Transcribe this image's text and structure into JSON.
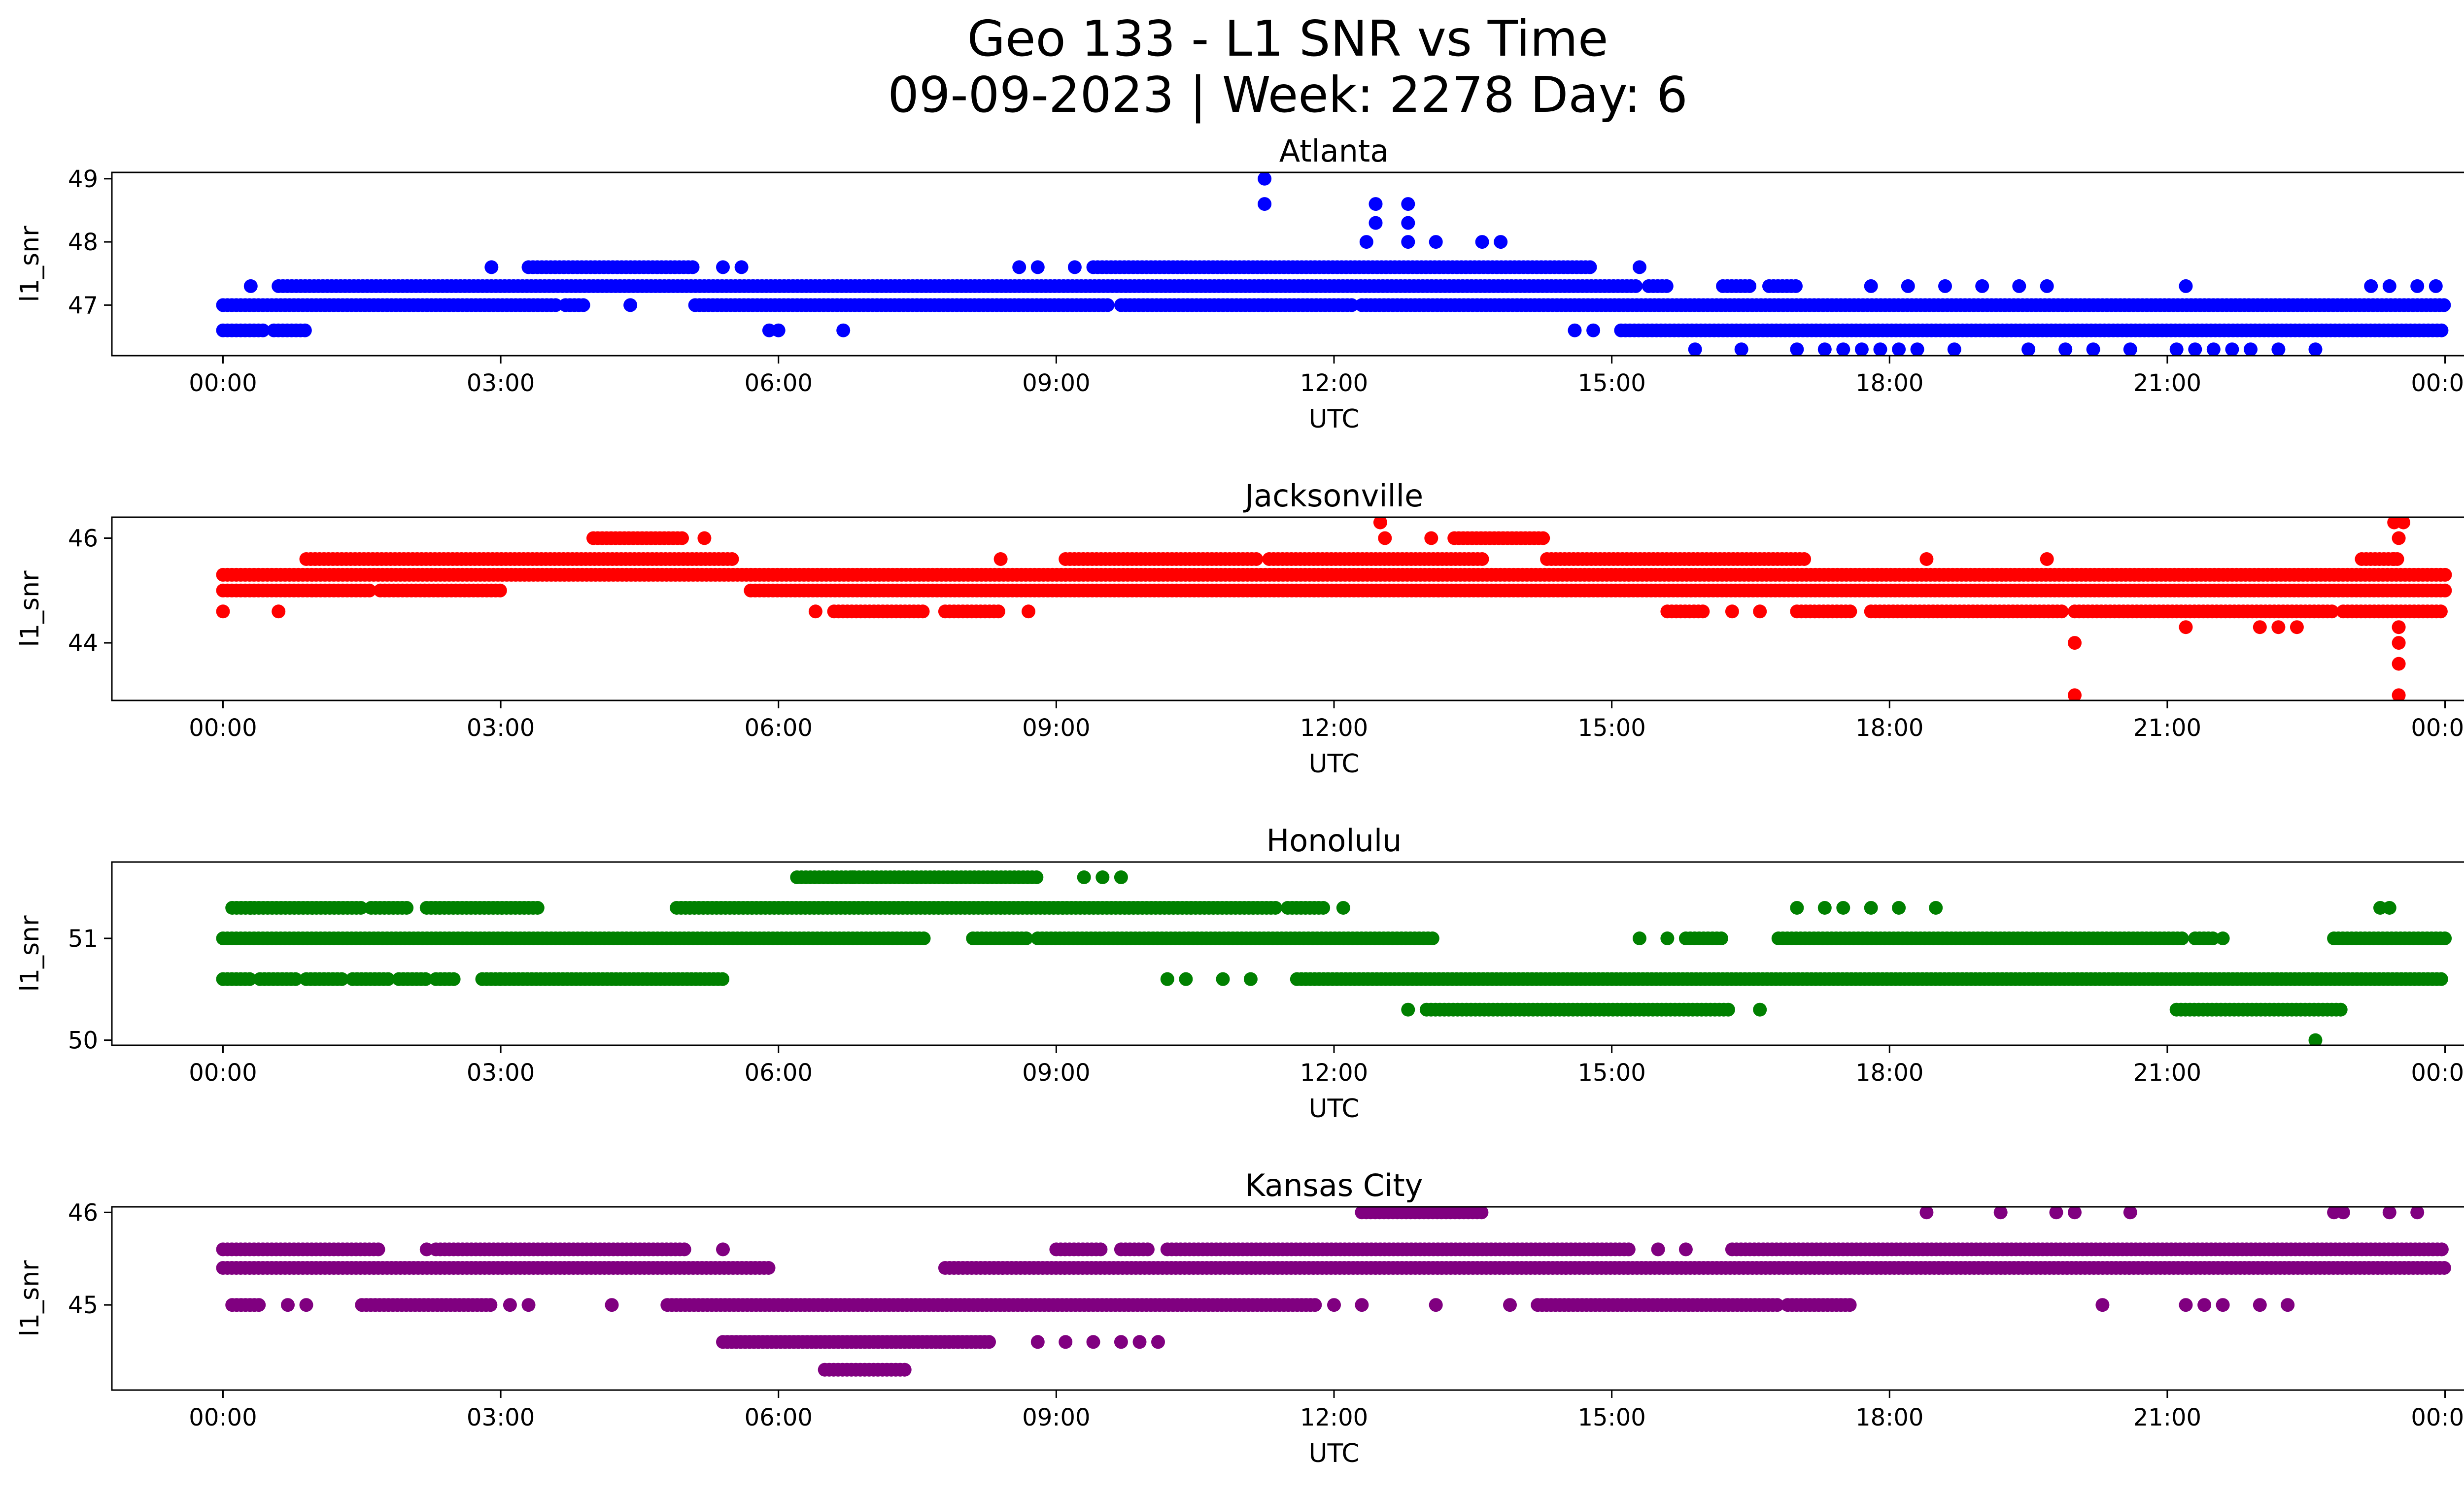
{
  "figure": {
    "title_line1": "Geo 133 - L1 SNR vs Time",
    "title_line2": "09-09-2023 | Week: 2278 Day: 6"
  },
  "chart_data": [
    {
      "type": "scatter",
      "title": "Atlanta",
      "xlabel": "UTC",
      "ylabel": "l1_snr",
      "color": "#0000ff",
      "x_ticks": [
        "00:00",
        "03:00",
        "06:00",
        "09:00",
        "12:00",
        "15:00",
        "18:00",
        "21:00",
        "00:00"
      ],
      "y_ticks": [
        47,
        48,
        49
      ],
      "xlim": [
        -1.2,
        25.2
      ],
      "ylim": [
        46.2,
        49.1
      ],
      "grid": false,
      "x_unit": "hours UTC",
      "bands": [
        {
          "y": 46.6,
          "ranges": [
            [
              0.0,
              0.45
            ],
            [
              0.55,
              0.9
            ],
            [
              15.1,
              24.0
            ]
          ]
        },
        {
          "y": 47.0,
          "ranges": [
            [
              0.0,
              3.6
            ],
            [
              3.7,
              3.9
            ],
            [
              5.1,
              9.6
            ],
            [
              9.7,
              12.2
            ],
            [
              12.3,
              24.0
            ]
          ]
        },
        {
          "y": 47.3,
          "ranges": [
            [
              0.6,
              15.3
            ],
            [
              15.4,
              15.6
            ],
            [
              16.2,
              16.5
            ],
            [
              16.7,
              17.0
            ]
          ]
        },
        {
          "y": 47.6,
          "ranges": [
            [
              3.3,
              5.1
            ],
            [
              9.4,
              14.8
            ]
          ]
        }
      ],
      "points": [
        {
          "x": 0.3,
          "y": 47.3
        },
        {
          "x": 2.9,
          "y": 47.6
        },
        {
          "x": 4.4,
          "y": 47.0
        },
        {
          "x": 5.4,
          "y": 47.6
        },
        {
          "x": 5.6,
          "y": 47.6
        },
        {
          "x": 5.9,
          "y": 46.6
        },
        {
          "x": 6.0,
          "y": 46.6
        },
        {
          "x": 6.7,
          "y": 46.6
        },
        {
          "x": 8.6,
          "y": 47.6
        },
        {
          "x": 8.8,
          "y": 47.6
        },
        {
          "x": 9.2,
          "y": 47.6
        },
        {
          "x": 11.25,
          "y": 49.0
        },
        {
          "x": 11.25,
          "y": 48.6
        },
        {
          "x": 12.35,
          "y": 48.0
        },
        {
          "x": 12.45,
          "y": 48.6
        },
        {
          "x": 12.45,
          "y": 48.3
        },
        {
          "x": 12.8,
          "y": 48.6
        },
        {
          "x": 12.8,
          "y": 48.3
        },
        {
          "x": 12.8,
          "y": 48.0
        },
        {
          "x": 13.1,
          "y": 48.0
        },
        {
          "x": 13.6,
          "y": 48.0
        },
        {
          "x": 13.8,
          "y": 48.0
        },
        {
          "x": 15.3,
          "y": 47.6
        },
        {
          "x": 14.6,
          "y": 46.6
        },
        {
          "x": 14.8,
          "y": 46.6
        },
        {
          "x": 15.9,
          "y": 46.3
        },
        {
          "x": 16.4,
          "y": 46.3
        },
        {
          "x": 17.0,
          "y": 46.3
        },
        {
          "x": 17.3,
          "y": 46.3
        },
        {
          "x": 17.5,
          "y": 46.3
        },
        {
          "x": 17.7,
          "y": 46.3
        },
        {
          "x": 17.9,
          "y": 46.3
        },
        {
          "x": 18.1,
          "y": 46.3
        },
        {
          "x": 18.3,
          "y": 46.3
        },
        {
          "x": 18.7,
          "y": 46.3
        },
        {
          "x": 19.5,
          "y": 46.3
        },
        {
          "x": 19.9,
          "y": 46.3
        },
        {
          "x": 20.2,
          "y": 46.3
        },
        {
          "x": 20.6,
          "y": 46.3
        },
        {
          "x": 21.1,
          "y": 46.3
        },
        {
          "x": 21.3,
          "y": 46.3
        },
        {
          "x": 21.5,
          "y": 46.3
        },
        {
          "x": 21.7,
          "y": 46.3
        },
        {
          "x": 21.9,
          "y": 46.3
        },
        {
          "x": 22.2,
          "y": 46.3
        },
        {
          "x": 22.6,
          "y": 46.3
        },
        {
          "x": 17.8,
          "y": 47.3
        },
        {
          "x": 18.2,
          "y": 47.3
        },
        {
          "x": 18.6,
          "y": 47.3
        },
        {
          "x": 19.0,
          "y": 47.3
        },
        {
          "x": 19.4,
          "y": 47.3
        },
        {
          "x": 19.7,
          "y": 47.3
        },
        {
          "x": 21.2,
          "y": 47.3
        },
        {
          "x": 23.2,
          "y": 47.3
        },
        {
          "x": 23.4,
          "y": 47.3
        },
        {
          "x": 23.7,
          "y": 47.3
        },
        {
          "x": 23.9,
          "y": 47.3
        }
      ]
    },
    {
      "type": "scatter",
      "title": "Jacksonville",
      "xlabel": "UTC",
      "ylabel": "l1_snr",
      "color": "#ff0000",
      "x_ticks": [
        "00:00",
        "03:00",
        "06:00",
        "09:00",
        "12:00",
        "15:00",
        "18:00",
        "21:00",
        "00:00"
      ],
      "y_ticks": [
        44,
        46
      ],
      "xlim": [
        -1.2,
        25.2
      ],
      "ylim": [
        42.9,
        46.4
      ],
      "grid": false,
      "x_unit": "hours UTC",
      "bands": [
        {
          "y": 45.0,
          "ranges": [
            [
              0.0,
              1.6
            ],
            [
              1.7,
              3.0
            ],
            [
              5.7,
              24.0
            ]
          ]
        },
        {
          "y": 45.3,
          "ranges": [
            [
              0.0,
              24.0
            ]
          ]
        },
        {
          "y": 45.6,
          "ranges": [
            [
              0.9,
              5.5
            ],
            [
              9.1,
              11.2
            ],
            [
              11.3,
              13.6
            ],
            [
              14.3,
              17.1
            ],
            [
              23.1,
              23.5
            ]
          ]
        },
        {
          "y": 46.0,
          "ranges": [
            [
              4.0,
              5.0
            ],
            [
              13.3,
              14.3
            ]
          ]
        },
        {
          "y": 44.6,
          "ranges": [
            [
              6.6,
              7.6
            ],
            [
              7.8,
              8.4
            ],
            [
              15.6,
              16.0
            ],
            [
              17.0,
              17.6
            ],
            [
              17.8,
              19.9
            ],
            [
              20.0,
              22.8
            ],
            [
              22.9,
              24.0
            ]
          ]
        }
      ],
      "points": [
        {
          "x": 0.0,
          "y": 44.6
        },
        {
          "x": 0.6,
          "y": 44.6
        },
        {
          "x": 6.4,
          "y": 44.6
        },
        {
          "x": 8.7,
          "y": 44.6
        },
        {
          "x": 8.4,
          "y": 45.6
        },
        {
          "x": 5.2,
          "y": 46.0
        },
        {
          "x": 12.5,
          "y": 46.3
        },
        {
          "x": 12.55,
          "y": 46.0
        },
        {
          "x": 13.05,
          "y": 46.0
        },
        {
          "x": 16.3,
          "y": 44.6
        },
        {
          "x": 16.6,
          "y": 44.6
        },
        {
          "x": 18.4,
          "y": 45.6
        },
        {
          "x": 19.7,
          "y": 45.6
        },
        {
          "x": 20.0,
          "y": 44.0
        },
        {
          "x": 20.0,
          "y": 43.0
        },
        {
          "x": 21.2,
          "y": 44.3
        },
        {
          "x": 22.0,
          "y": 44.3
        },
        {
          "x": 22.2,
          "y": 44.3
        },
        {
          "x": 22.4,
          "y": 44.3
        },
        {
          "x": 23.5,
          "y": 44.3
        },
        {
          "x": 23.5,
          "y": 44.0
        },
        {
          "x": 23.5,
          "y": 43.6
        },
        {
          "x": 23.5,
          "y": 43.0
        },
        {
          "x": 23.45,
          "y": 46.3
        },
        {
          "x": 23.55,
          "y": 46.3
        },
        {
          "x": 23.5,
          "y": 46.0
        },
        {
          "x": 23.45,
          "y": 45.6
        }
      ]
    },
    {
      "type": "scatter",
      "title": "Honolulu",
      "xlabel": "UTC",
      "ylabel": "l1_snr",
      "color": "#008000",
      "x_ticks": [
        "00:00",
        "03:00",
        "06:00",
        "09:00",
        "12:00",
        "15:00",
        "18:00",
        "21:00",
        "00:00"
      ],
      "y_ticks": [
        50,
        51
      ],
      "xlim": [
        -1.2,
        25.2
      ],
      "ylim": [
        49.95,
        51.75
      ],
      "grid": false,
      "x_unit": "hours UTC",
      "bands": [
        {
          "y": 50.6,
          "ranges": [
            [
              0.0,
              0.3
            ],
            [
              0.4,
              0.8
            ],
            [
              0.9,
              1.3
            ],
            [
              1.4,
              1.8
            ],
            [
              1.9,
              2.2
            ],
            [
              2.3,
              2.5
            ],
            [
              2.8,
              3.0
            ],
            [
              3.0,
              5.4
            ],
            [
              11.6,
              24.0
            ]
          ]
        },
        {
          "y": 51.0,
          "ranges": [
            [
              0.0,
              7.6
            ],
            [
              8.1,
              8.7
            ],
            [
              8.8,
              13.1
            ],
            [
              15.8,
              16.2
            ],
            [
              16.8,
              21.2
            ],
            [
              21.3,
              21.5
            ],
            [
              22.8,
              24.0
            ]
          ]
        },
        {
          "y": 51.3,
          "ranges": [
            [
              0.1,
              1.5
            ],
            [
              1.6,
              2.0
            ],
            [
              2.2,
              3.4
            ],
            [
              4.9,
              11.4
            ],
            [
              11.5,
              11.9
            ]
          ]
        },
        {
          "y": 51.6,
          "ranges": [
            [
              6.2,
              8.8
            ]
          ]
        },
        {
          "y": 50.3,
          "ranges": [
            [
              13.0,
              16.3
            ],
            [
              21.1,
              22.9
            ]
          ]
        }
      ],
      "points": [
        {
          "x": 0.3,
          "y": 51.3
        },
        {
          "x": 6.8,
          "y": 51.6
        },
        {
          "x": 9.3,
          "y": 51.6
        },
        {
          "x": 9.5,
          "y": 51.6
        },
        {
          "x": 9.7,
          "y": 51.6
        },
        {
          "x": 10.2,
          "y": 50.6
        },
        {
          "x": 10.4,
          "y": 50.6
        },
        {
          "x": 10.8,
          "y": 50.6
        },
        {
          "x": 11.1,
          "y": 50.6
        },
        {
          "x": 12.1,
          "y": 51.3
        },
        {
          "x": 12.8,
          "y": 50.3
        },
        {
          "x": 15.3,
          "y": 51.0
        },
        {
          "x": 15.6,
          "y": 51.0
        },
        {
          "x": 16.6,
          "y": 50.3
        },
        {
          "x": 17.0,
          "y": 51.3
        },
        {
          "x": 17.3,
          "y": 51.3
        },
        {
          "x": 17.5,
          "y": 51.3
        },
        {
          "x": 17.8,
          "y": 51.3
        },
        {
          "x": 18.1,
          "y": 51.3
        },
        {
          "x": 18.5,
          "y": 51.3
        },
        {
          "x": 21.6,
          "y": 51.0
        },
        {
          "x": 22.6,
          "y": 50.0
        },
        {
          "x": 23.3,
          "y": 51.3
        },
        {
          "x": 23.4,
          "y": 51.3
        }
      ]
    },
    {
      "type": "scatter",
      "title": "Kansas City",
      "xlabel": "UTC",
      "ylabel": "l1_snr",
      "color": "#800080",
      "x_ticks": [
        "00:00",
        "03:00",
        "06:00",
        "09:00",
        "12:00",
        "15:00",
        "18:00",
        "21:00",
        "00:00"
      ],
      "y_ticks": [
        45,
        46
      ],
      "xlim": [
        -1.2,
        25.2
      ],
      "ylim": [
        44.08,
        46.06
      ],
      "grid": false,
      "x_unit": "hours UTC",
      "bands": [
        {
          "y": 45.6,
          "ranges": [
            [
              0.0,
              1.7
            ],
            [
              2.3,
              5.0
            ],
            [
              9.0,
              9.5
            ],
            [
              9.7,
              10.0
            ],
            [
              10.2,
              15.2
            ],
            [
              16.3,
              24.0
            ]
          ]
        },
        {
          "y": 45.4,
          "ranges": [
            [
              0.0,
              5.9
            ],
            [
              7.8,
              24.0
            ]
          ]
        },
        {
          "y": 45.0,
          "ranges": [
            [
              0.1,
              0.4
            ],
            [
              1.5,
              2.9
            ],
            [
              4.8,
              11.8
            ],
            [
              14.2,
              16.8
            ],
            [
              16.9,
              17.6
            ]
          ]
        },
        {
          "y": 44.6,
          "ranges": [
            [
              5.4,
              8.3
            ]
          ]
        },
        {
          "y": 44.3,
          "ranges": [
            [
              6.5,
              7.4
            ]
          ]
        },
        {
          "y": 46.0,
          "ranges": [
            [
              12.3,
              13.6
            ]
          ]
        }
      ],
      "points": [
        {
          "x": 0.7,
          "y": 45.0
        },
        {
          "x": 0.9,
          "y": 45.0
        },
        {
          "x": 2.2,
          "y": 45.6
        },
        {
          "x": 3.1,
          "y": 45.0
        },
        {
          "x": 3.3,
          "y": 45.0
        },
        {
          "x": 4.2,
          "y": 45.0
        },
        {
          "x": 5.4,
          "y": 45.6
        },
        {
          "x": 8.8,
          "y": 44.6
        },
        {
          "x": 9.1,
          "y": 44.6
        },
        {
          "x": 9.4,
          "y": 44.6
        },
        {
          "x": 9.7,
          "y": 44.6
        },
        {
          "x": 9.9,
          "y": 44.6
        },
        {
          "x": 10.1,
          "y": 44.6
        },
        {
          "x": 12.3,
          "y": 45.0
        },
        {
          "x": 13.1,
          "y": 45.0
        },
        {
          "x": 13.9,
          "y": 45.0
        },
        {
          "x": 15.5,
          "y": 45.6
        },
        {
          "x": 15.8,
          "y": 45.6
        },
        {
          "x": 12.0,
          "y": 45.0
        },
        {
          "x": 18.4,
          "y": 46.0
        },
        {
          "x": 19.2,
          "y": 46.0
        },
        {
          "x": 19.8,
          "y": 46.0
        },
        {
          "x": 20.0,
          "y": 46.0
        },
        {
          "x": 20.6,
          "y": 46.0
        },
        {
          "x": 20.3,
          "y": 45.0
        },
        {
          "x": 21.2,
          "y": 45.0
        },
        {
          "x": 21.4,
          "y": 45.0
        },
        {
          "x": 21.6,
          "y": 45.0
        },
        {
          "x": 22.0,
          "y": 45.0
        },
        {
          "x": 22.3,
          "y": 45.0
        },
        {
          "x": 22.8,
          "y": 46.0
        },
        {
          "x": 22.9,
          "y": 46.0
        },
        {
          "x": 23.4,
          "y": 46.0
        },
        {
          "x": 23.7,
          "y": 46.0
        }
      ]
    }
  ]
}
